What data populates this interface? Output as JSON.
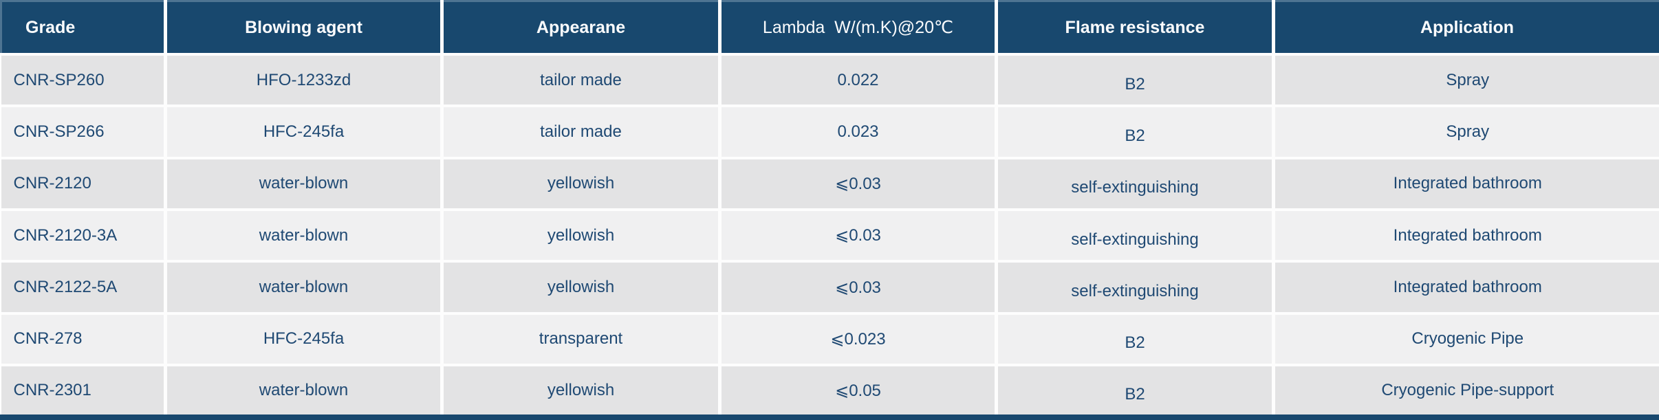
{
  "colors": {
    "header_bg": "#18486E",
    "header_text": "#FBFCFD",
    "header_edge_border": "#4E7492",
    "row_dark": "#E3E3E4",
    "row_light": "#F0F0F1",
    "grid_line": "#FDFDFD",
    "body_text": "#1F4973",
    "bottom_bar": "#18486E"
  },
  "table": {
    "columns": [
      {
        "key": "grade",
        "label": "Grade"
      },
      {
        "key": "blowing-agent",
        "label": "Blowing agent"
      },
      {
        "key": "appearance",
        "label": "Appearane"
      },
      {
        "key": "lambda",
        "label": "Lambda  W/(m.K)@20℃",
        "light": true
      },
      {
        "key": "flame-resistance",
        "label": "Flame resistance"
      },
      {
        "key": "application",
        "label": "Application"
      }
    ],
    "rows": [
      [
        "CNR-SP260",
        "HFO-1233zd",
        "tailor made",
        "0.022",
        "B2",
        "Spray"
      ],
      [
        "CNR-SP266",
        "HFC-245fa",
        "tailor made",
        "0.023",
        "B2",
        "Spray"
      ],
      [
        "CNR-2120",
        "water-blown",
        "yellowish",
        "⩽0.03",
        "self-extinguishing",
        "Integrated bathroom"
      ],
      [
        "CNR-2120-3A",
        "water-blown",
        "yellowish",
        "⩽0.03",
        "self-extinguishing",
        "Integrated bathroom"
      ],
      [
        "CNR-2122-5A",
        "water-blown",
        "yellowish",
        "⩽0.03",
        "self-extinguishing",
        "Integrated bathroom"
      ],
      [
        "CNR-278",
        "HFC-245fa",
        "transparent",
        "⩽0.023",
        "B2",
        "Cryogenic Pipe"
      ],
      [
        "CNR-2301",
        "water-blown",
        "yellowish",
        "⩽0.05",
        "B2",
        "Cryogenic Pipe-support"
      ]
    ]
  }
}
